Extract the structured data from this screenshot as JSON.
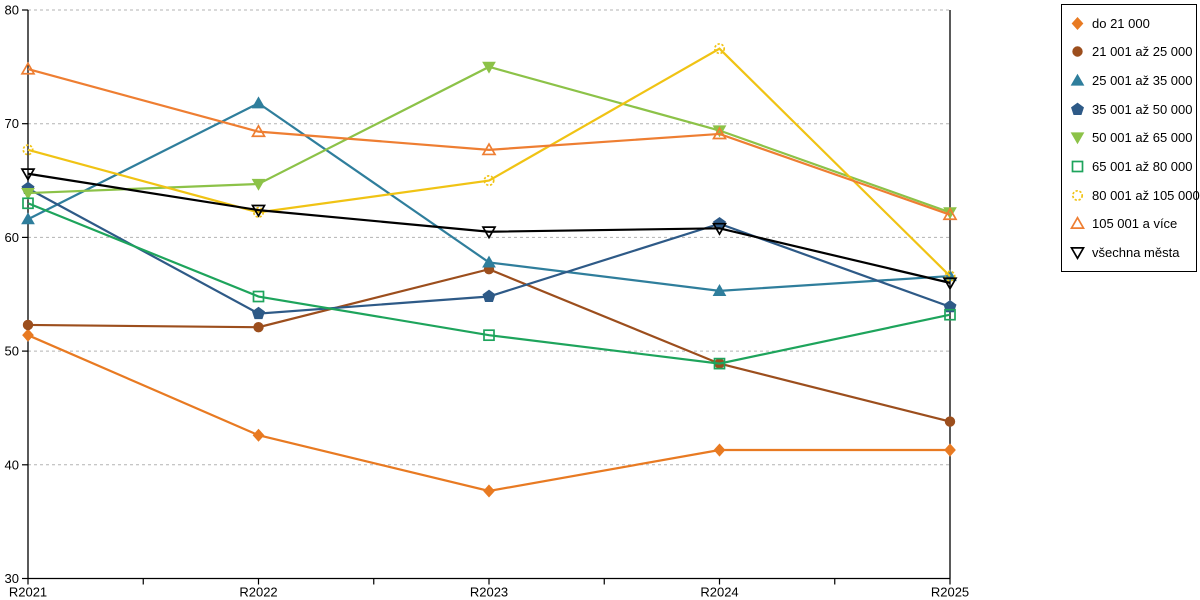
{
  "chart_data": {
    "type": "line",
    "title": "",
    "xlabel": "",
    "ylabel": "",
    "categories": [
      "R2021",
      "R2022",
      "R2023",
      "R2024",
      "R2025"
    ],
    "ylim": [
      30,
      80
    ],
    "yticks": [
      30,
      40,
      50,
      60,
      70,
      80
    ],
    "grid": "horizontal-dashed",
    "grid_color": "#b3b3b3",
    "axis_color": "#000000",
    "legend_position": "right-outside",
    "series": [
      {
        "name": "do 21 000",
        "color": "#E87A22",
        "marker": "diamond",
        "fill": "filled",
        "values": [
          51.4,
          42.6,
          37.7,
          41.3,
          41.3
        ]
      },
      {
        "name": "21 001 až 25 000",
        "color": "#9C4E1D",
        "marker": "circle",
        "fill": "filled",
        "values": [
          52.3,
          52.1,
          57.2,
          48.9,
          43.8
        ]
      },
      {
        "name": "25 001 až 35 000",
        "color": "#2F7E9C",
        "marker": "triangle-up",
        "fill": "filled",
        "values": [
          61.6,
          71.8,
          57.8,
          55.3,
          56.6
        ]
      },
      {
        "name": "35 001 až 50 000",
        "color": "#2E5A87",
        "marker": "pentagon",
        "fill": "filled",
        "values": [
          64.3,
          53.3,
          54.8,
          61.2,
          53.9
        ]
      },
      {
        "name": "50 001 až 65 000",
        "color": "#8CC248",
        "marker": "triangle-down",
        "fill": "filled",
        "values": [
          63.9,
          64.7,
          75.0,
          69.4,
          62.2
        ]
      },
      {
        "name": "65 001 až 80 000",
        "color": "#1EA45C",
        "marker": "square",
        "fill": "open",
        "values": [
          63.0,
          54.8,
          51.4,
          48.9,
          53.2
        ]
      },
      {
        "name": "80 001 až 105 000",
        "color": "#F0C314",
        "marker": "circle-dashed",
        "fill": "open",
        "values": [
          67.7,
          62.2,
          65.0,
          76.6,
          56.6
        ]
      },
      {
        "name": "105 001 a více",
        "color": "#EE7E32",
        "marker": "triangle-up",
        "fill": "open",
        "values": [
          74.8,
          69.3,
          67.7,
          69.1,
          62.0
        ]
      },
      {
        "name": "všechna města",
        "color": "#000000",
        "marker": "triangle-down",
        "fill": "open",
        "values": [
          65.6,
          62.4,
          60.5,
          60.8,
          56.0
        ]
      }
    ]
  }
}
